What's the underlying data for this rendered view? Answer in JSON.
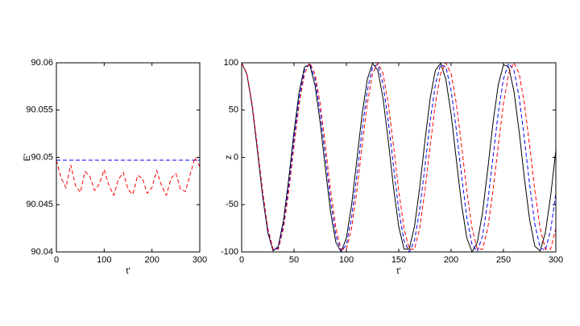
{
  "chart_data": [
    {
      "type": "line",
      "xlabel": "t'",
      "ylabel": "E'",
      "x": [
        0,
        10,
        20,
        30,
        40,
        50,
        60,
        70,
        80,
        90,
        100,
        110,
        120,
        130,
        140,
        150,
        160,
        170,
        180,
        190,
        200,
        210,
        220,
        230,
        240,
        250,
        260,
        270,
        280,
        290,
        300
      ],
      "xlim": [
        0,
        300
      ],
      "xticks": [
        0,
        100,
        200,
        300
      ],
      "ylim": [
        90.04,
        90.06
      ],
      "yticks": [
        90.04,
        90.045,
        90.05,
        90.055,
        90.06
      ],
      "series": [
        {
          "color": "#0000ff",
          "dashed": true,
          "values": [
            90.0497,
            90.0497,
            90.0497,
            90.0497,
            90.0497,
            90.0497,
            90.0497,
            90.0497,
            90.0497,
            90.0497,
            90.0497,
            90.0497,
            90.0497,
            90.0497,
            90.0497,
            90.0497,
            90.0497,
            90.0497,
            90.0497,
            90.0497,
            90.0497,
            90.0497,
            90.0497,
            90.0497,
            90.0497,
            90.0497,
            90.0497,
            90.0497,
            90.0497,
            90.0497,
            90.0497
          ]
        },
        {
          "color": "#ff0000",
          "dashed": true,
          "values": [
            90.0497,
            90.0478,
            90.0468,
            90.0492,
            90.047,
            90.0463,
            90.0485,
            90.048,
            90.0465,
            90.0472,
            90.0487,
            90.047,
            90.046,
            90.0477,
            90.0484,
            90.0466,
            90.0461,
            90.0481,
            90.0478,
            90.0462,
            90.0468,
            90.0486,
            90.047,
            90.046,
            90.0478,
            90.0483,
            90.0466,
            90.0464,
            90.0482,
            90.05,
            90.049
          ]
        }
      ]
    },
    {
      "type": "line",
      "xlabel": "t'",
      "ylabel": "z",
      "x": [
        0,
        5,
        10,
        15,
        20,
        25,
        30,
        35,
        40,
        45,
        50,
        55,
        60,
        65,
        70,
        75,
        80,
        85,
        90,
        95,
        100,
        105,
        110,
        115,
        120,
        125,
        130,
        135,
        140,
        145,
        150,
        155,
        160,
        165,
        170,
        175,
        180,
        185,
        190,
        195,
        200,
        205,
        210,
        215,
        220,
        225,
        230,
        235,
        240,
        245,
        250,
        255,
        260,
        265,
        270,
        275,
        280,
        285,
        290,
        295,
        300
      ],
      "xlim": [
        0,
        300
      ],
      "xticks": [
        0,
        50,
        100,
        150,
        200,
        250,
        300
      ],
      "ylim": [
        -100,
        100
      ],
      "yticks": [
        -100,
        -50,
        0,
        50,
        100
      ],
      "series": [
        {
          "color": "#000000",
          "dashed": false,
          "values": [
            100,
            87.8,
            54.3,
            7.5,
            -41.2,
            -79.7,
            -98.9,
            -94,
            -66.1,
            -22.3,
            27.1,
            69.8,
            95.6,
            98,
            76.6,
            36.5,
            -12.4,
            -58.4,
            -90.1,
            -99.9,
            -85.3,
            -50,
            -2.5,
            45.6,
            82.6,
            99.5,
            92.1,
            62.4,
            17.4,
            -31.9,
            -73.3,
            -96.9,
            -96.9,
            -73.3,
            -31.9,
            17.4,
            62.4,
            92.1,
            99.5,
            82.6,
            45.6,
            -2.5,
            -50,
            -85.3,
            -99.9,
            -90.1,
            -58.4,
            -12.4,
            36.5,
            76.6,
            98,
            95.6,
            69.8,
            27.1,
            -22.3,
            -66.1,
            -94,
            -98.9,
            -79.7,
            -41.2,
            7.5
          ]
        },
        {
          "color": "#0000ff",
          "dashed": true,
          "values": [
            100,
            88.2,
            55.6,
            9.8,
            -38.3,
            -77.3,
            -98.1,
            -95.7,
            -70.7,
            -29,
            19.5,
            63.4,
            92.4,
            99.5,
            83.1,
            47.1,
            0,
            -47.1,
            -83.1,
            -99.5,
            -92.4,
            -63.4,
            -19.5,
            29,
            70.7,
            95.7,
            98.1,
            77.3,
            38.3,
            -9.8,
            -55.6,
            -88.2,
            -100,
            -88.2,
            -55.6,
            -9.8,
            38.3,
            77.3,
            98.1,
            95.7,
            70.7,
            29,
            -19.5,
            -63.4,
            -92.4,
            -99.5,
            -83.1,
            -47.1,
            0,
            47.1,
            83.1,
            99.5,
            92.4,
            63.4,
            19.5,
            -29,
            -70.7,
            -95.7,
            -98.1,
            -77.3,
            -38.3
          ]
        },
        {
          "color": "#ff0000",
          "dashed": true,
          "values": [
            100,
            88.5,
            56.8,
            12.1,
            -35.5,
            -74.9,
            -97.1,
            -97.1,
            -74.9,
            -35.5,
            12.1,
            56.8,
            88.5,
            100,
            88.5,
            56.8,
            12.1,
            -35.5,
            -74.9,
            -97.1,
            -97.1,
            -74.9,
            -35.5,
            12.1,
            56.8,
            88.5,
            100,
            88.5,
            56.8,
            12.1,
            -35.5,
            -74.9,
            -97.1,
            -97.1,
            -74.9,
            -35.5,
            12.1,
            56.8,
            88.5,
            100,
            88.5,
            56.8,
            12.1,
            -35.5,
            -74.9,
            -97.1,
            -97.1,
            -74.9,
            -35.5,
            12.1,
            56.8,
            88.5,
            100,
            88.5,
            56.8,
            12.1,
            -35.5,
            -74.9,
            -97.1,
            -97.1,
            -74.9
          ]
        }
      ]
    }
  ]
}
